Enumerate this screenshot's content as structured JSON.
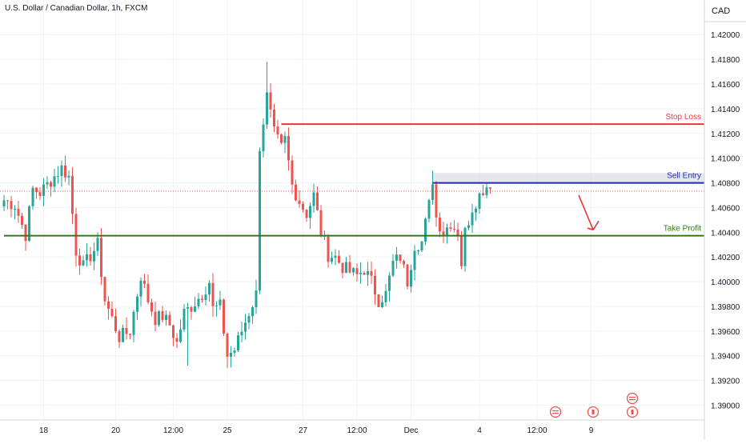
{
  "header": {
    "symbol_title": "U.S. Dollar / Canadian Dollar, 1h, FXCM",
    "currency": "CAD"
  },
  "colors": {
    "up": "#26a69a",
    "down": "#ef5350",
    "stop_loss": "#e53935",
    "sell_entry": "#1d2ea8",
    "take_profit": "#2e7d12",
    "current_price": "#ef5350",
    "grid": "#f0f3fa",
    "axis_text": "#131722",
    "arrow": "#e53935",
    "entry_zone": "#d1d4dc"
  },
  "chart_data": {
    "type": "candlestick",
    "y_axis": {
      "ylim": [
        1.3888,
        1.4228
      ],
      "ticks": [
        "1.39000",
        "1.39200",
        "1.39400",
        "1.39600",
        "1.39800",
        "1.40000",
        "1.40200",
        "1.40400",
        "1.40600",
        "1.40800",
        "1.41000",
        "1.41200",
        "1.41400",
        "1.41600",
        "1.41800",
        "1.42000"
      ],
      "tick_values": [
        1.39,
        1.392,
        1.394,
        1.396,
        1.398,
        1.4,
        1.402,
        1.404,
        1.406,
        1.408,
        1.41,
        1.412,
        1.414,
        1.416,
        1.418,
        1.42
      ]
    },
    "x_axis": {
      "labels": [
        "18",
        "20",
        "12:00",
        "25",
        "27",
        "12:00",
        "Dec",
        "4",
        "12:00",
        "9"
      ],
      "label_bars": [
        11,
        31,
        47,
        62,
        83,
        98,
        113,
        132,
        148,
        163
      ]
    },
    "bar_count": 190,
    "anchors": [
      [
        0,
        1.4066
      ],
      [
        3,
        1.4062
      ],
      [
        6,
        1.4038
      ],
      [
        8,
        1.4075
      ],
      [
        10,
        1.4072
      ],
      [
        13,
        1.4082
      ],
      [
        16,
        1.4092
      ],
      [
        18,
        1.4085
      ],
      [
        20,
        1.4025
      ],
      [
        22,
        1.4012
      ],
      [
        26,
        1.403
      ],
      [
        28,
        1.3985
      ],
      [
        32,
        1.3955
      ],
      [
        35,
        1.396
      ],
      [
        38,
        1.4005
      ],
      [
        40,
        1.3985
      ],
      [
        42,
        1.397
      ],
      [
        44,
        1.3972
      ],
      [
        46,
        1.3965
      ],
      [
        48,
        1.395
      ],
      [
        50,
        1.3975
      ],
      [
        52,
        1.398
      ],
      [
        55,
        1.399
      ],
      [
        57,
        1.4
      ],
      [
        58,
        1.3978
      ],
      [
        60,
        1.398
      ],
      [
        62,
        1.394
      ],
      [
        64,
        1.3945
      ],
      [
        66,
        1.396
      ],
      [
        68,
        1.3975
      ],
      [
        70,
        1.399
      ],
      [
        71,
        1.411
      ],
      [
        73,
        1.415
      ],
      [
        75,
        1.412
      ],
      [
        77,
        1.4108
      ],
      [
        78,
        1.4115
      ],
      [
        80,
        1.4078
      ],
      [
        82,
        1.4065
      ],
      [
        84,
        1.4055
      ],
      [
        86,
        1.407
      ],
      [
        88,
        1.404
      ],
      [
        90,
        1.4022
      ],
      [
        92,
        1.402
      ],
      [
        94,
        1.4012
      ],
      [
        96,
        1.4008
      ],
      [
        98,
        1.4005
      ],
      [
        100,
        1.401
      ],
      [
        102,
        1.4
      ],
      [
        104,
        1.3985
      ],
      [
        106,
        1.399
      ],
      [
        108,
        1.4015
      ],
      [
        110,
        1.402
      ],
      [
        112,
        1.4
      ],
      [
        114,
        1.403
      ],
      [
        116,
        1.4032
      ],
      [
        118,
        1.4062
      ],
      [
        119,
        1.4083
      ],
      [
        120,
        1.4052
      ],
      [
        122,
        1.404
      ],
      [
        124,
        1.4048
      ],
      [
        126,
        1.404
      ],
      [
        127,
        1.4015
      ],
      [
        128,
        1.404
      ],
      [
        130,
        1.406
      ],
      [
        133,
        1.4075
      ],
      [
        135,
        1.408
      ]
    ],
    "levels": [
      {
        "name": "Stop Loss",
        "value": 1.41275,
        "label": "1.41275"
      },
      {
        "name": "Sell Entry",
        "value": 1.40799,
        "label": "1.40799"
      },
      {
        "name": "Take Profit",
        "value": 1.40372,
        "label": "1.40372"
      }
    ],
    "current_price": {
      "value": 1.40732,
      "label": "1.40732"
    },
    "grid": true
  }
}
